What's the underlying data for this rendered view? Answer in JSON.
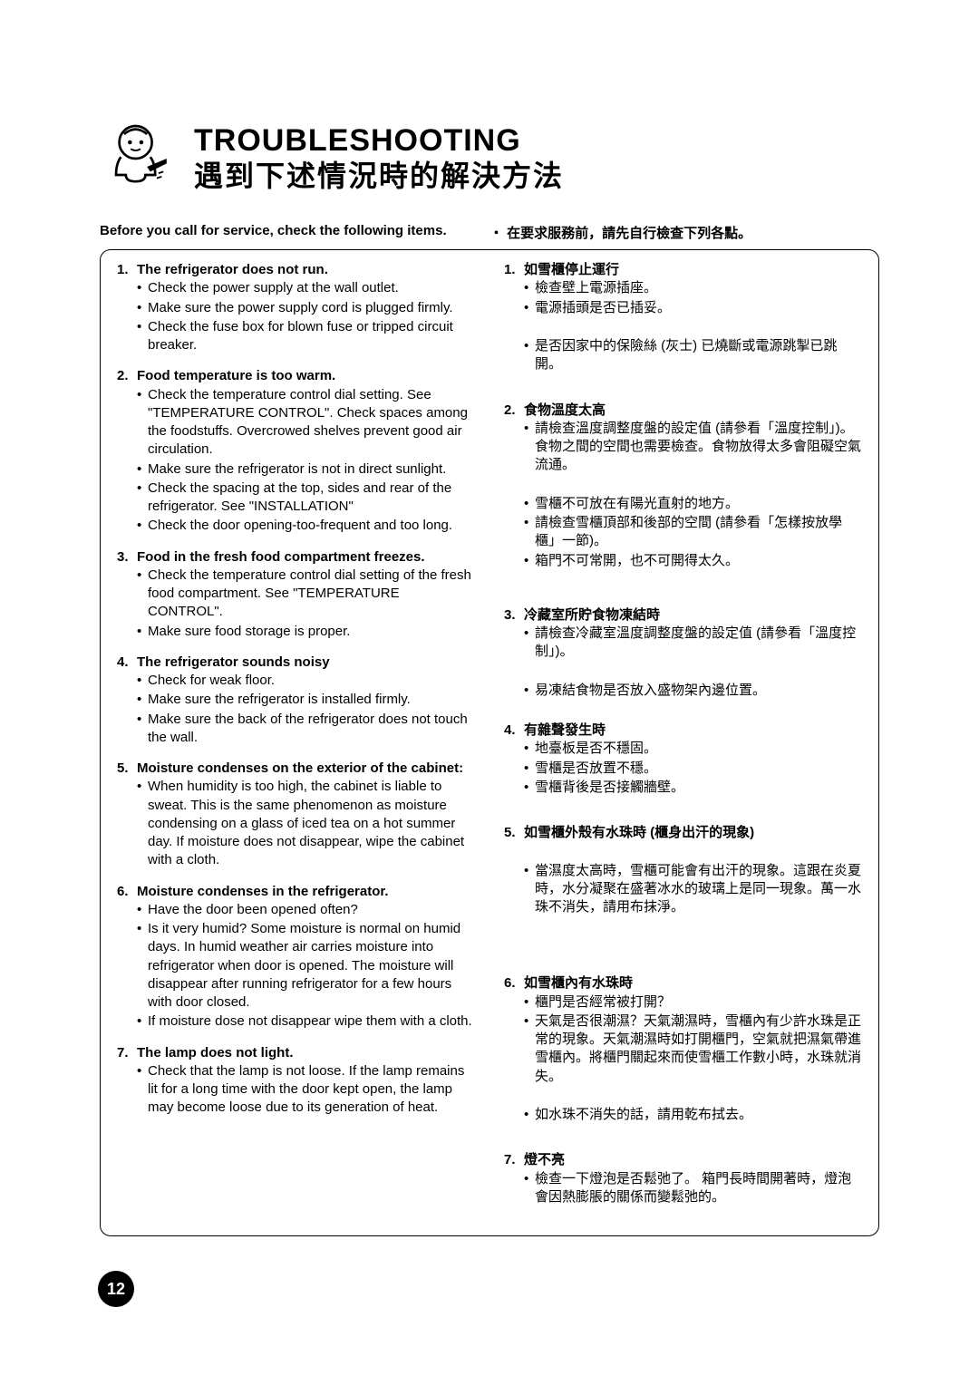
{
  "title_en": "TROUBLESHOOTING",
  "title_zh": "遇到下述情況時的解決方法",
  "intro_en": "Before you call for service, check the following items.",
  "intro_zh": "・ 在要求服務前，請先自行檢查下列各點。",
  "page_number": "12",
  "en": {
    "sections": [
      {
        "num": "1.",
        "title": "The refrigerator does not run.",
        "items": [
          "Check the power supply at the wall outlet.",
          "Make sure the power supply cord is plugged firmly.",
          "Check the fuse box for blown fuse or tripped circuit breaker."
        ]
      },
      {
        "num": "2.",
        "title": "Food temperature is too warm.",
        "items": [
          "Check the temperature control dial setting. See \"TEMPERATURE CONTROL\". Check spaces among the foodstuffs. Overcrowed shelves prevent good air circulation.",
          "Make sure the refrigerator is not in direct sunlight.",
          "Check the spacing at the top, sides and rear of the refrigerator. See \"INSTALLATION\"",
          "Check the door opening-too-frequent and too long."
        ]
      },
      {
        "num": "3.",
        "title": "Food in the fresh food compartment freezes.",
        "items": [
          "Check the temperature control dial setting of the fresh food compartment. See \"TEMPERATURE CONTROL\".",
          "Make sure food storage is proper."
        ]
      },
      {
        "num": "4.",
        "title": "The refrigerator sounds noisy",
        "items": [
          "Check for weak floor.",
          "Make sure the refrigerator is installed firmly.",
          "Make sure the back of the refrigerator does not touch the wall."
        ]
      },
      {
        "num": "5.",
        "title": "Moisture condenses on the exterior of the cabinet:",
        "items": [
          "When humidity is too high, the cabinet is liable to sweat. This is the same phenomenon as moisture condensing on a glass of iced tea on a hot summer day. If moisture does not disappear, wipe the cabinet with a cloth."
        ]
      },
      {
        "num": "6.",
        "title": "Moisture condenses in the refrigerator.",
        "items": [
          "Have the door been opened often?",
          "Is it very humid? Some moisture is normal on humid days. In humid weather air carries moisture into refrigerator when door is opened. The moisture will disappear after running refrigerator for a few hours with door closed.",
          "If moisture dose not disappear wipe them with a cloth."
        ]
      },
      {
        "num": "7.",
        "title": "The lamp does not light.",
        "items": [
          "Check that the lamp is not loose. If the lamp remains lit for a long time with the door kept open, the lamp may become loose due to its generation of heat."
        ]
      }
    ]
  },
  "zh": {
    "sections": [
      {
        "num": "1.",
        "title": "如雪櫃停止運行",
        "items": [
          "檢查壁上電源插座。",
          "電源插頭是否已插妥。",
          "",
          "是否因家中的保險絲 (灰士) 已燒斷或電源跳掣已跳開。"
        ]
      },
      {
        "num": "2.",
        "title": "食物溫度太高",
        "items": [
          "請檢查溫度調整度盤的設定值 (請參看「溫度控制」)。食物之間的空間也需要檢查。食物放得太多會阻礙空氣流通。",
          "",
          "雪櫃不可放在有陽光直射的地方。",
          "請檢查雪櫃頂部和後部的空間 (請參看「怎樣按放學櫃」一節)。",
          "箱門不可常開，也不可開得太久。"
        ]
      },
      {
        "num": "3.",
        "title": "冷藏室所貯食物凍結時",
        "items": [
          "請檢查冷藏室溫度調整度盤的設定值 (請參看「溫度控制」)。",
          "",
          "易凍結食物是否放入盛物架內邊位置。"
        ]
      },
      {
        "num": "4.",
        "title": "有雜聲發生時",
        "items": [
          "地臺板是否不穩固。",
          "雪櫃是否放置不穩。",
          "雪櫃背後是否接觸牆壁。"
        ]
      },
      {
        "num": "5.",
        "title": "如雪櫃外殼有水珠時 (櫃身出汗的現象)",
        "items": [
          "",
          "當濕度太高時，雪櫃可能會有出汗的現象。這跟在炎夏時，水分凝聚在盛著冰水的玻璃上是同一現象。萬一水珠不消失，請用布抹淨。"
        ]
      },
      {
        "num": "6.",
        "title": "如雪櫃內有水珠時",
        "items": [
          "櫃門是否經常被打開？",
          "天氣是否很潮濕？天氣潮濕時，雪櫃內有少許水珠是正常的現象。天氣潮濕時如打開櫃門，空氣就把濕氣帶進雪櫃內。將櫃門關起來而使雪櫃工作數小時，水珠就消失。",
          "",
          "如水珠不消失的話，請用乾布拭去。"
        ]
      },
      {
        "num": "7.",
        "title": "燈不亮",
        "items": [
          "檢查一下燈泡是否鬆弛了。\n箱門長時間開著時，燈泡會因熱膨脹的關係而變鬆弛的。"
        ]
      }
    ]
  }
}
